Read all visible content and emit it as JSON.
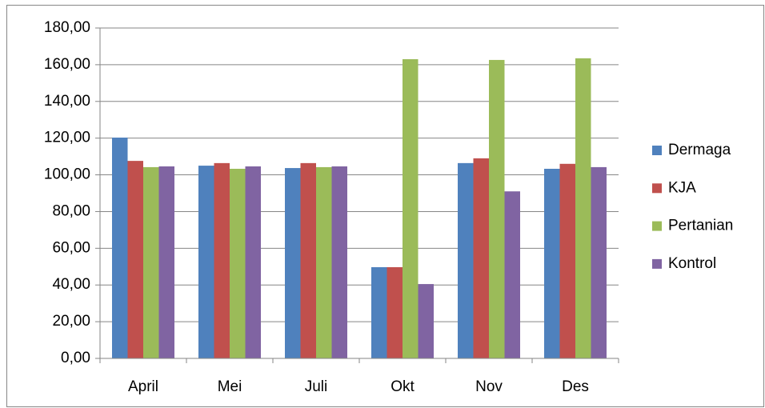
{
  "chart_data": {
    "type": "bar",
    "categories": [
      "April",
      "Mei",
      "Juli",
      "Okt",
      "Nov",
      "Des"
    ],
    "series": [
      {
        "name": "Dermaga",
        "color": "#4f81bd",
        "values": [
          120.3,
          105,
          103.7,
          49.7,
          106.4,
          103.3
        ]
      },
      {
        "name": "KJA",
        "color": "#c0504d",
        "values": [
          107.6,
          106.4,
          106.4,
          49.7,
          109,
          106
        ]
      },
      {
        "name": "Pertanian",
        "color": "#9bbb59",
        "values": [
          104.2,
          103.3,
          104.2,
          163,
          162.6,
          163.5
        ]
      },
      {
        "name": "Kontrol",
        "color": "#8064a2",
        "values": [
          104.6,
          104.6,
          104.6,
          40.5,
          91,
          104.2
        ]
      }
    ],
    "ylim": [
      0,
      180
    ],
    "yticks": [
      {
        "value": 0,
        "label": "0,00"
      },
      {
        "value": 20,
        "label": "20,00"
      },
      {
        "value": 40,
        "label": "40,00"
      },
      {
        "value": 60,
        "label": "60,00"
      },
      {
        "value": 80,
        "label": "80,00"
      },
      {
        "value": 100,
        "label": "100,00"
      },
      {
        "value": 120,
        "label": "120,00"
      },
      {
        "value": 140,
        "label": "140,00"
      },
      {
        "value": 160,
        "label": "160,00"
      },
      {
        "value": 180,
        "label": "180,00"
      }
    ],
    "grid": true,
    "legend": "right"
  }
}
